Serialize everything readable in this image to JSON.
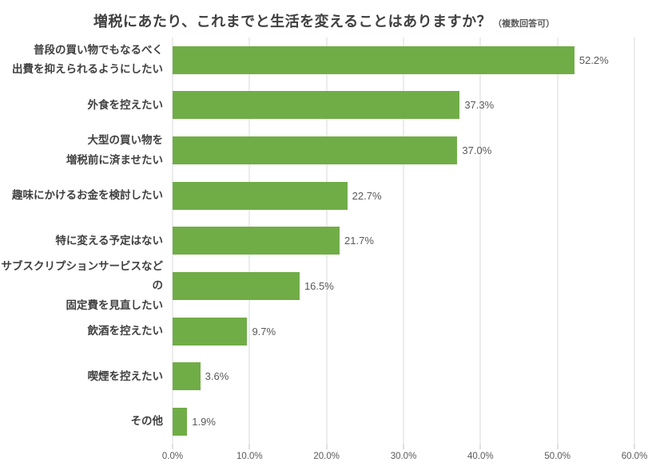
{
  "title": {
    "main": "増税にあたり、これまでと生活を変えることはありますか？",
    "note": "（複数回答可）"
  },
  "chart_data": {
    "type": "bar",
    "orientation": "horizontal",
    "title": "増税にあたり、これまでと生活を変えることはありますか？（複数回答可）",
    "categories": [
      [
        "普段の買い物でもなるべく",
        "出費を抑えられるようにしたい"
      ],
      [
        "外食を控えたい"
      ],
      [
        "大型の買い物を",
        "増税前に済ませたい"
      ],
      [
        "趣味にかけるお金を検討したい"
      ],
      [
        "特に変える予定はない"
      ],
      [
        "サブスクリプションサービスなどの",
        "固定費を見直したい"
      ],
      [
        "飲酒を控えたい"
      ],
      [
        "喫煙を控えたい"
      ],
      [
        "その他"
      ]
    ],
    "values": [
      52.2,
      37.3,
      37.0,
      22.7,
      21.7,
      16.5,
      9.7,
      3.6,
      1.9
    ],
    "value_labels": [
      "52.2%",
      "37.3%",
      "37.0%",
      "22.7%",
      "21.7%",
      "16.5%",
      "9.7%",
      "3.6%",
      "1.9%"
    ],
    "xlim": [
      0,
      60
    ],
    "x_ticks": [
      "0.0%",
      "10.0%",
      "20.0%",
      "30.0%",
      "40.0%",
      "50.0%",
      "60.0%"
    ],
    "grid": true,
    "legend": "none",
    "colors": {
      "bar": "#70AD47",
      "gridline": "#D9D9D9",
      "tick": "#BFBFBF",
      "category_label": "#404040",
      "value_label": "#595959",
      "axis_label": "#595959"
    }
  }
}
